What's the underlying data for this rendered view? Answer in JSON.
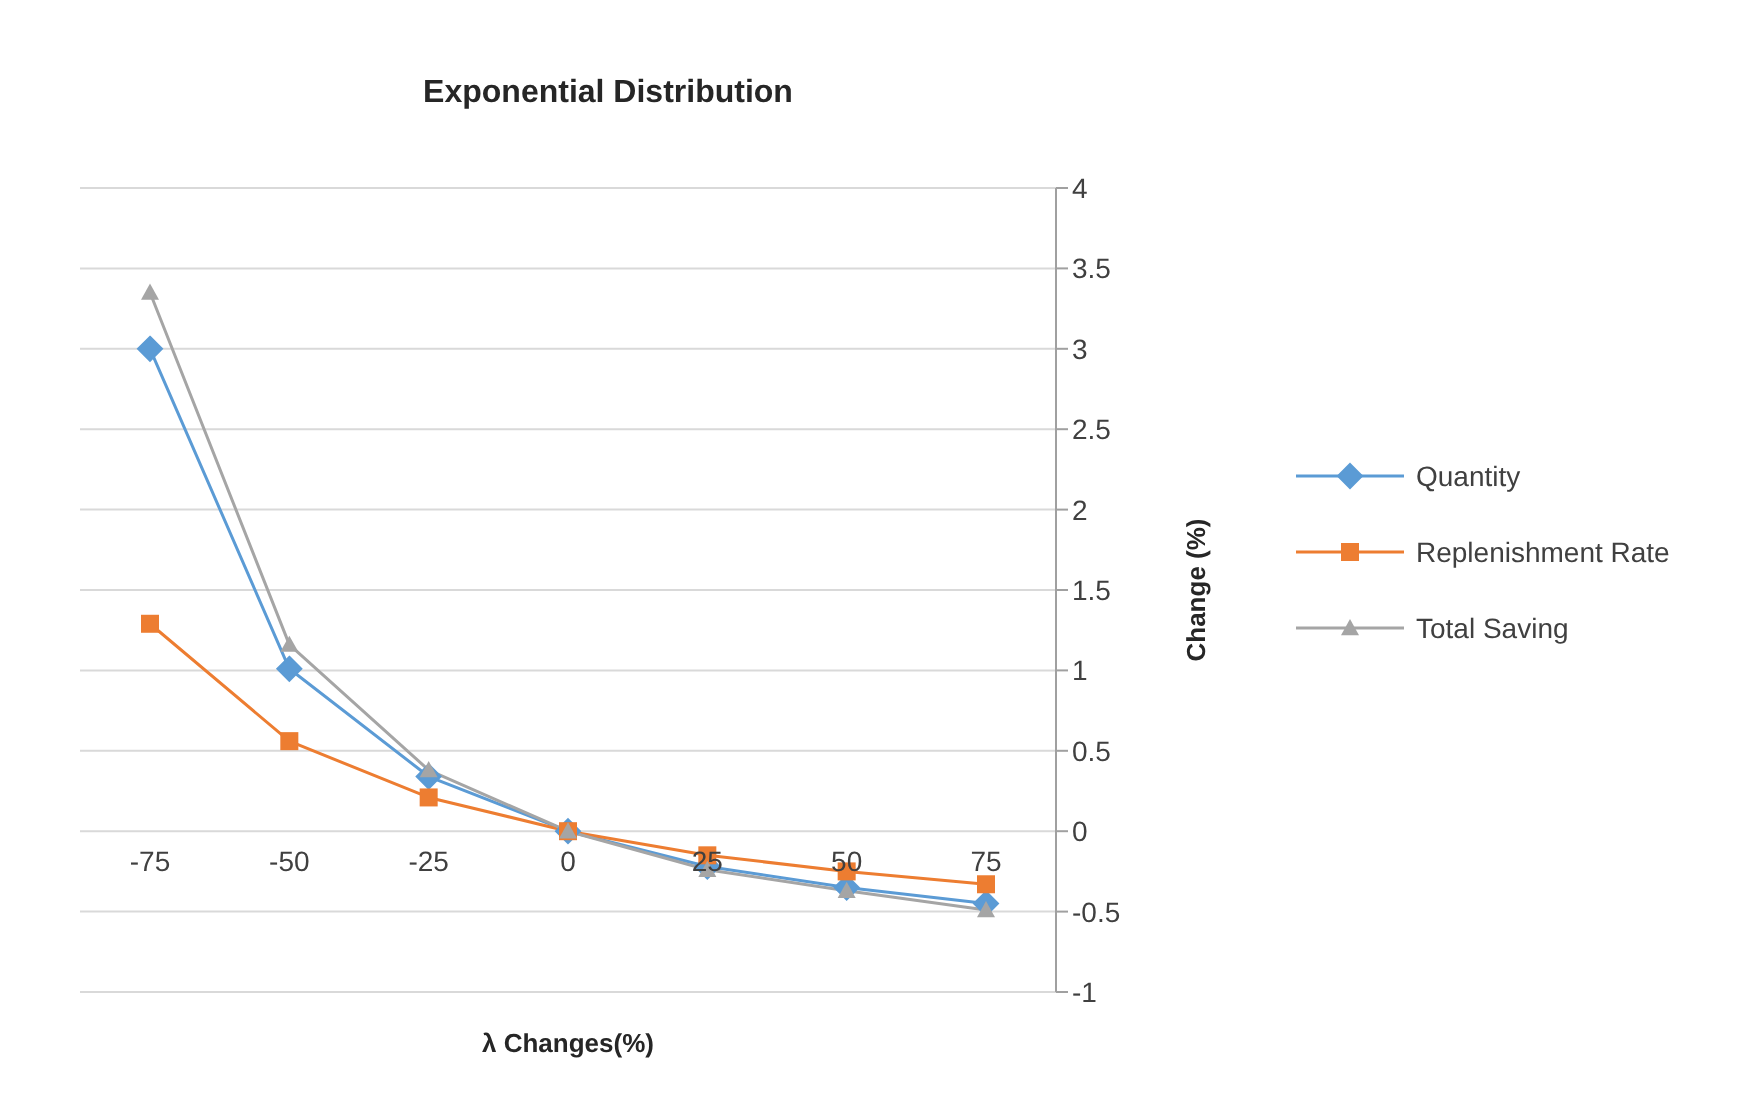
{
  "chart_data": {
    "type": "line",
    "title": "Exponential Distribution",
    "xlabel": "λ Changes(%)",
    "ylabel": "Change  (%)",
    "categories": [
      "-75",
      "-50",
      "-25",
      "0",
      "25",
      "50",
      "75"
    ],
    "series": [
      {
        "name": "Quantity",
        "color": "#5b9bd5",
        "marker": "diamond",
        "values": [
          3.0,
          1.01,
          0.34,
          0,
          -0.22,
          -0.35,
          -0.45
        ]
      },
      {
        "name": "Replenishment Rate",
        "color": "#ed7d31",
        "marker": "square",
        "values": [
          1.29,
          0.56,
          0.21,
          0,
          -0.15,
          -0.25,
          -0.33
        ]
      },
      {
        "name": "Total Saving",
        "color": "#a5a5a5",
        "marker": "triangle",
        "values": [
          3.35,
          1.16,
          0.38,
          0,
          -0.24,
          -0.37,
          -0.49
        ]
      }
    ],
    "ylim": [
      -1,
      4
    ],
    "yticks": [
      -1,
      -0.5,
      0,
      0.5,
      1,
      1.5,
      2,
      2.5,
      3,
      3.5,
      4
    ],
    "grid": "y",
    "legend": "right"
  }
}
